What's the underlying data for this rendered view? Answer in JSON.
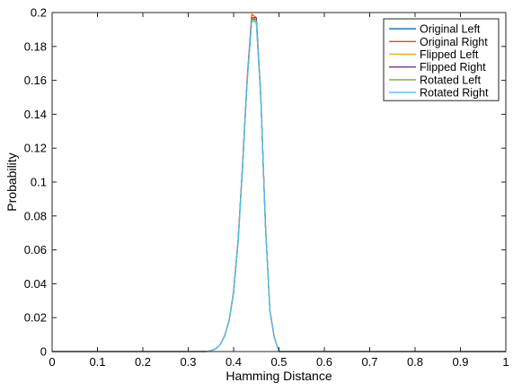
{
  "chart_data": {
    "type": "line",
    "xlabel": "Hamming Distance",
    "ylabel": "Probability",
    "xlim": [
      0,
      1
    ],
    "ylim": [
      0,
      0.2
    ],
    "xticks": [
      "0",
      "0.1",
      "0.2",
      "0.3",
      "0.4",
      "0.5",
      "0.6",
      "0.7",
      "0.8",
      "0.9",
      "1"
    ],
    "yticks": [
      "0",
      "0.02",
      "0.04",
      "0.06",
      "0.08",
      "0.1",
      "0.12",
      "0.14",
      "0.16",
      "0.18",
      "0.2"
    ],
    "legend_position": "top-right",
    "grid": false,
    "x": [
      0,
      0.05,
      0.1,
      0.15,
      0.2,
      0.25,
      0.3,
      0.34,
      0.35,
      0.36,
      0.37,
      0.38,
      0.39,
      0.4,
      0.41,
      0.42,
      0.43,
      0.44,
      0.45,
      0.46,
      0.47,
      0.48,
      0.49,
      0.5,
      0.55,
      0.6,
      0.7,
      0.8,
      0.9,
      1.0
    ],
    "series": [
      {
        "name": "Original Left",
        "color": "#0072BD",
        "values": [
          0,
          0,
          0,
          0,
          0,
          0,
          0,
          0,
          0.0005,
          0.0015,
          0.004,
          0.009,
          0.018,
          0.035,
          0.065,
          0.11,
          0.16,
          0.196,
          0.196,
          0.15,
          0.075,
          0.024,
          0.008,
          0,
          0,
          0,
          0,
          0,
          0,
          0
        ]
      },
      {
        "name": "Original Right",
        "color": "#D95319",
        "values": [
          0,
          0,
          0,
          0,
          0,
          0,
          0,
          0,
          0.0005,
          0.0015,
          0.004,
          0.009,
          0.018,
          0.036,
          0.066,
          0.112,
          0.162,
          0.199,
          0.197,
          0.151,
          0.076,
          0.024,
          0.008,
          0,
          0,
          0,
          0,
          0,
          0,
          0
        ]
      },
      {
        "name": "Flipped Left",
        "color": "#EDB120",
        "values": [
          0,
          0,
          0,
          0,
          0,
          0,
          0,
          0,
          0.0005,
          0.0015,
          0.004,
          0.009,
          0.018,
          0.035,
          0.065,
          0.11,
          0.16,
          0.197,
          0.196,
          0.15,
          0.075,
          0.024,
          0.008,
          0,
          0,
          0,
          0,
          0,
          0,
          0
        ]
      },
      {
        "name": "Flipped Right",
        "color": "#7E2F8E",
        "values": [
          0,
          0,
          0,
          0,
          0,
          0,
          0,
          0,
          0.0005,
          0.0015,
          0.004,
          0.009,
          0.018,
          0.035,
          0.066,
          0.111,
          0.161,
          0.197,
          0.197,
          0.15,
          0.076,
          0.024,
          0.008,
          0,
          0,
          0,
          0,
          0,
          0,
          0
        ]
      },
      {
        "name": "Rotated Left",
        "color": "#77AC30",
        "values": [
          0,
          0,
          0,
          0,
          0,
          0,
          0,
          0,
          0.0005,
          0.0015,
          0.004,
          0.009,
          0.018,
          0.035,
          0.065,
          0.11,
          0.16,
          0.196,
          0.195,
          0.149,
          0.075,
          0.024,
          0.008,
          0,
          0,
          0,
          0,
          0,
          0,
          0
        ]
      },
      {
        "name": "Rotated Right",
        "color": "#4DBEEE",
        "values": [
          0,
          0,
          0,
          0,
          0,
          0,
          0,
          0,
          0.0005,
          0.0015,
          0.004,
          0.009,
          0.018,
          0.035,
          0.065,
          0.11,
          0.16,
          0.195,
          0.194,
          0.149,
          0.075,
          0.024,
          0.008,
          0,
          0,
          0,
          0,
          0,
          0,
          0
        ]
      }
    ]
  }
}
